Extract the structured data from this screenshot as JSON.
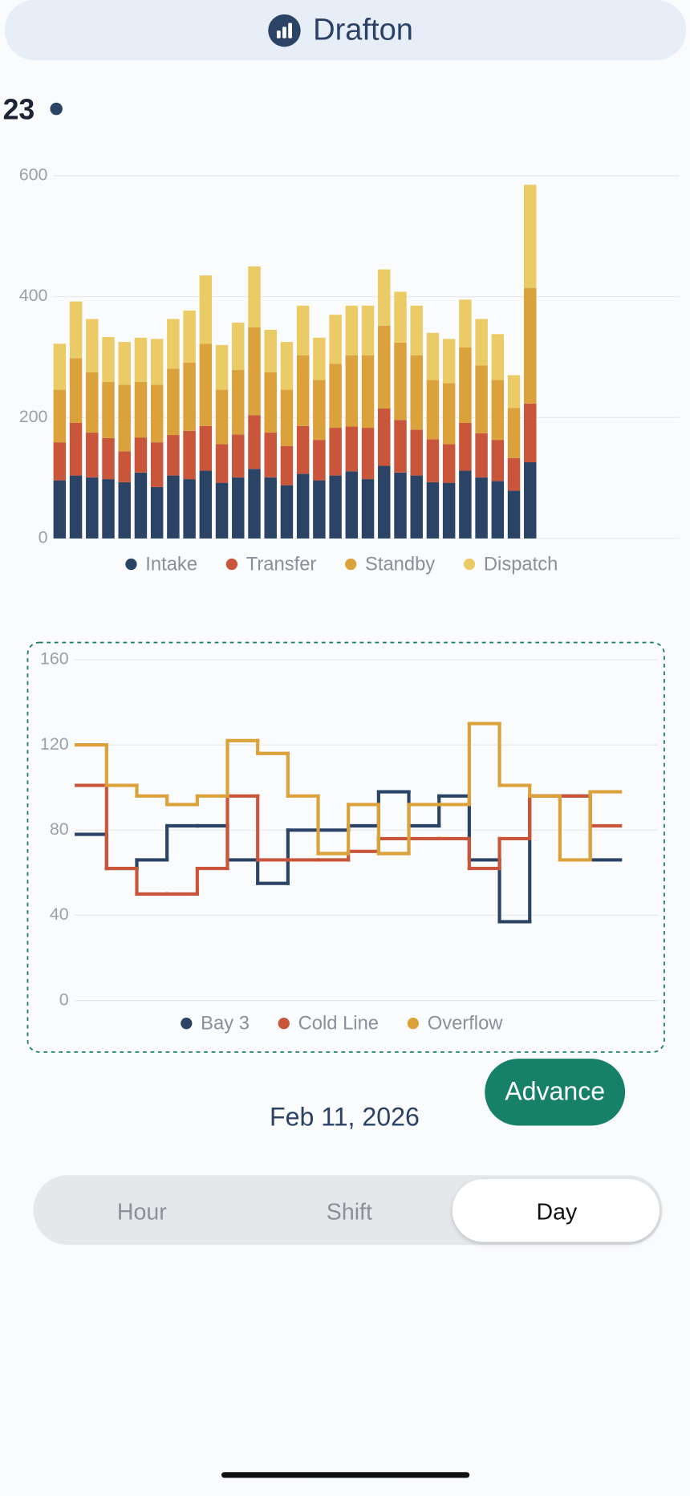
{
  "header": {
    "title": "Drafton"
  },
  "slider": {
    "value": 23
  },
  "chart_data": [
    {
      "type": "bar",
      "stacked": true,
      "ylim": [
        0,
        600
      ],
      "yticks": [
        0,
        200,
        400,
        600
      ],
      "grid": true,
      "legend": "bottom",
      "series": [
        {
          "name": "Intake",
          "color": "#2b4466",
          "values": [
            96,
            104,
            101,
            98,
            93,
            109,
            85,
            104,
            98,
            112,
            92,
            101,
            115,
            101,
            88,
            107,
            96,
            104,
            111,
            98,
            120,
            109,
            104,
            93,
            92,
            112,
            101,
            95,
            79,
            126
          ]
        },
        {
          "name": "Transfer",
          "color": "#c9553a",
          "values": [
            63,
            87,
            74,
            68,
            51,
            58,
            74,
            67,
            80,
            74,
            64,
            71,
            89,
            74,
            65,
            79,
            67,
            79,
            74,
            85,
            95,
            87,
            76,
            71,
            64,
            79,
            73,
            68,
            54,
            97
          ]
        },
        {
          "name": "Standby",
          "color": "#dba13a",
          "values": [
            87,
            107,
            100,
            93,
            110,
            92,
            95,
            110,
            113,
            136,
            90,
            107,
            145,
            100,
            93,
            117,
            99,
            106,
            118,
            120,
            137,
            128,
            123,
            98,
            101,
            125,
            112,
            99,
            83,
            191
          ]
        },
        {
          "name": "Dispatch",
          "color": "#ebcb65",
          "values": [
            76,
            94,
            88,
            74,
            71,
            73,
            76,
            82,
            86,
            113,
            74,
            78,
            101,
            70,
            79,
            82,
            70,
            81,
            82,
            82,
            93,
            84,
            82,
            78,
            73,
            79,
            77,
            76,
            54,
            171
          ]
        }
      ]
    },
    {
      "type": "step",
      "ylim": [
        0,
        160
      ],
      "yticks": [
        0,
        40,
        80,
        120,
        160
      ],
      "grid": true,
      "legend": "bottom",
      "series": [
        {
          "name": "Bay 3",
          "color": "#2b4466",
          "values": [
            78,
            62,
            66,
            82,
            82,
            66,
            55,
            80,
            80,
            82,
            98,
            82,
            96,
            66,
            37,
            96,
            96,
            66
          ]
        },
        {
          "name": "Cold Line",
          "color": "#c9553a",
          "values": [
            101,
            62,
            50,
            50,
            62,
            96,
            66,
            66,
            66,
            70,
            76,
            76,
            76,
            62,
            76,
            96,
            96,
            82
          ]
        },
        {
          "name": "Overflow",
          "color": "#dba13a",
          "values": [
            120,
            101,
            96,
            92,
            96,
            122,
            116,
            96,
            69,
            92,
            69,
            92,
            92,
            130,
            101,
            96,
            66,
            98
          ]
        }
      ]
    }
  ],
  "date": "Feb 11, 2026",
  "button": {
    "label": "Advance"
  },
  "segmented": {
    "options": [
      "Hour",
      "Shift",
      "Day"
    ],
    "selected": 2
  }
}
